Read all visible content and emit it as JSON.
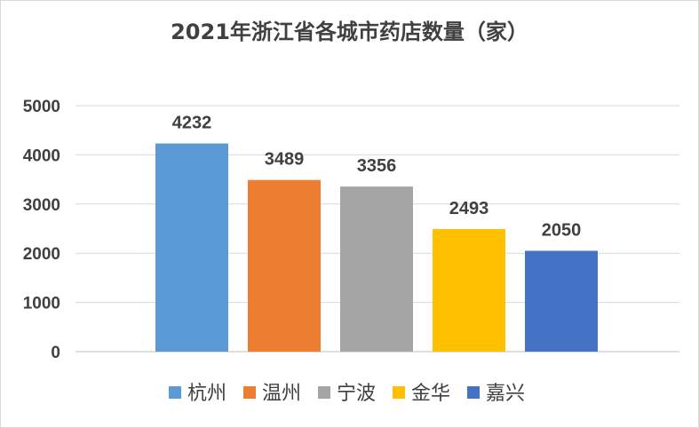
{
  "chart_data": {
    "type": "bar",
    "title": "2021年浙江省各城市药店数量（家）",
    "categories": [
      "杭州",
      "温州",
      "宁波",
      "金华",
      "嘉兴"
    ],
    "values": [
      4232,
      3489,
      3356,
      2493,
      2050
    ],
    "colors": [
      "#5b9bd5",
      "#ed7d31",
      "#a5a5a5",
      "#ffc000",
      "#4472c4"
    ],
    "ylim": [
      0,
      5000
    ],
    "yticks": [
      "0",
      "1000",
      "2000",
      "3000",
      "4000",
      "5000"
    ],
    "data_labels": [
      "4232",
      "3489",
      "3356",
      "2493",
      "2050"
    ],
    "grid": true,
    "legend": "bottom"
  }
}
